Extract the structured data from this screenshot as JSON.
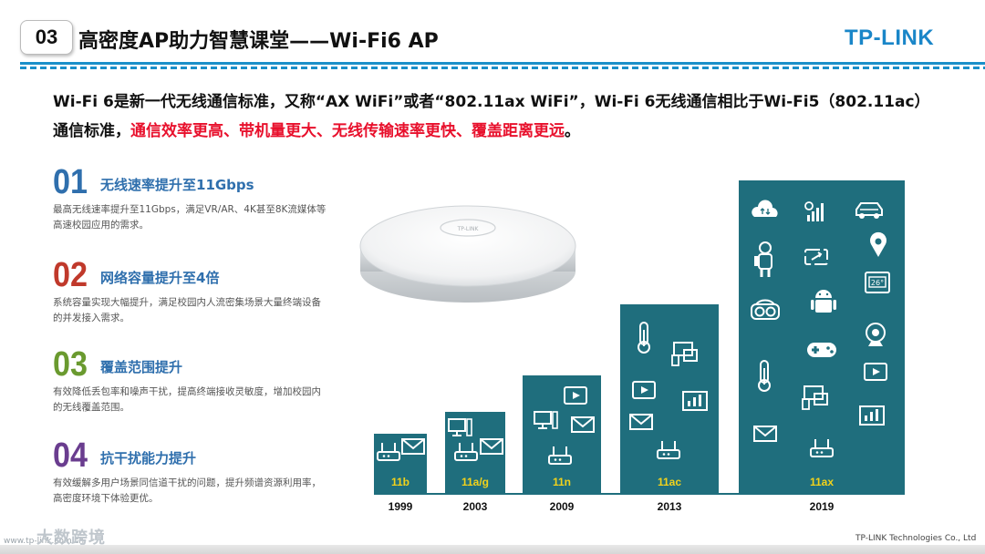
{
  "header": {
    "section_number": "03",
    "title": "高密度AP助力智慧课堂——Wi-Fi6  AP",
    "logo": "TP-LINK",
    "accent_color": "#1a8fc9"
  },
  "intro": {
    "text_plain": "Wi-Fi 6是新一代无线通信标准，又称“AX WiFi”或者“802.11ax WiFi”，Wi-Fi 6无线通信相比于Wi-Fi5（802.11ac）通信标准，",
    "text_red": "通信效率更高、带机量更大、无线传输速率更快、覆盖距离更远",
    "text_end": "。",
    "red_color": "#e8102c"
  },
  "features": [
    {
      "num": "01",
      "title": "无线速率提升至11Gbps",
      "desc": "最高无线速率提升至11Gbps，满足VR/AR、4K甚至8K流媒体等高速校园应用的需求。",
      "color": "#2f6fad"
    },
    {
      "num": "02",
      "title": "网络容量提升至4倍",
      "desc": "系统容量实现大幅提升，满足校园内人流密集场景大量终端设备的并发接入需求。",
      "color": "#c0392b"
    },
    {
      "num": "03",
      "title": "覆盖范围提升",
      "desc": "有效降低丢包率和噪声干扰，提高终端接收灵敏度，增加校园内的无线覆盖范围。",
      "color": "#6a9a2f"
    },
    {
      "num": "04",
      "title": "抗干扰能力提升",
      "desc": "有效缓解多用户场景同信道干扰的问题，提升频谱资源利用率，高密度环境下体验更优。",
      "color": "#6a3d8f"
    }
  ],
  "chart_data": {
    "type": "bar",
    "categories": [
      "1999",
      "2003",
      "2009",
      "2013",
      "2019"
    ],
    "labels": [
      "11b",
      "11a/g",
      "11n",
      "11ac",
      "11ax"
    ],
    "bar_color": "#1f6e7d",
    "label_color": "#f2d21b",
    "baseline_color": "#1f6e7d"
  },
  "footer": {
    "company": "TP-LINK Technologies Co., Ltd",
    "watermark": "大数跨境",
    "watermark_small": "www.tp-link.com.cn"
  },
  "icons": [
    "router-icon",
    "mail-icon",
    "computer-icon",
    "video-icon",
    "tablet-icon",
    "chart-icon",
    "thermometer-icon",
    "cloud-icon",
    "signal-icon",
    "car-icon",
    "robot-icon",
    "sync-icon",
    "location-icon",
    "thermostat-icon",
    "android-icon",
    "vr-icon",
    "gamepad-icon",
    "camera-icon",
    "phone-icon",
    "display-icon"
  ]
}
